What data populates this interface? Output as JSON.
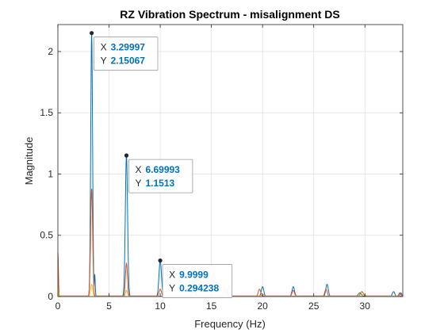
{
  "chart_data": {
    "type": "line",
    "title": "RZ Vibration Spectrum - misalignment DS",
    "xlabel": "Frequency (Hz)",
    "ylabel": "Magnitude",
    "xlim": [
      0,
      33.7
    ],
    "ylim": [
      0,
      2.22
    ],
    "xticks": [
      0,
      5,
      10,
      15,
      20,
      25,
      30
    ],
    "yticks": [
      0,
      0.5,
      1,
      1.5,
      2
    ],
    "xtick_labels": [
      "0",
      "5",
      "10",
      "15",
      "20",
      "25",
      "30"
    ],
    "ytick_labels": [
      "0",
      "0.5",
      "1",
      "1.5",
      "2"
    ],
    "grid": true,
    "series": [
      {
        "color": "#0072BD",
        "peaks": [
          {
            "x": 0.0,
            "y": 0.3,
            "w": 0.05
          },
          {
            "x": 3.29997,
            "y": 2.15067,
            "w": 0.09
          },
          {
            "x": 3.6,
            "y": 0.18,
            "w": 0.05
          },
          {
            "x": 6.69993,
            "y": 1.1513,
            "w": 0.11
          },
          {
            "x": 9.9999,
            "y": 0.294238,
            "w": 0.12
          },
          {
            "x": 13.3,
            "y": 0.14,
            "w": 0.12
          },
          {
            "x": 16.3,
            "y": 0.07,
            "w": 0.12
          },
          {
            "x": 16.75,
            "y": 0.09,
            "w": 0.1
          },
          {
            "x": 20.0,
            "y": 0.08,
            "w": 0.12
          },
          {
            "x": 23.0,
            "y": 0.08,
            "w": 0.12
          },
          {
            "x": 26.3,
            "y": 0.1,
            "w": 0.12
          },
          {
            "x": 29.5,
            "y": 0.03,
            "w": 0.15
          },
          {
            "x": 32.8,
            "y": 0.04,
            "w": 0.12
          },
          {
            "x": 33.5,
            "y": 0.03,
            "w": 0.1
          }
        ]
      },
      {
        "color": "#D95319",
        "peaks": [
          {
            "x": 0.0,
            "y": 0.36,
            "w": 0.05
          },
          {
            "x": 3.3,
            "y": 0.88,
            "w": 0.1
          },
          {
            "x": 6.7,
            "y": 0.27,
            "w": 0.1
          },
          {
            "x": 10.0,
            "y": 0.06,
            "w": 0.12
          },
          {
            "x": 13.3,
            "y": 0.04,
            "w": 0.12
          },
          {
            "x": 16.5,
            "y": 0.05,
            "w": 0.15
          },
          {
            "x": 19.7,
            "y": 0.06,
            "w": 0.12
          },
          {
            "x": 23.0,
            "y": 0.05,
            "w": 0.12
          },
          {
            "x": 26.2,
            "y": 0.06,
            "w": 0.12
          },
          {
            "x": 29.7,
            "y": 0.04,
            "w": 0.15
          },
          {
            "x": 33.4,
            "y": 0.03,
            "w": 0.1
          }
        ]
      },
      {
        "color": "#EDB120",
        "peaks": [
          {
            "x": 0.0,
            "y": 0.08,
            "w": 0.05
          },
          {
            "x": 3.3,
            "y": 0.1,
            "w": 0.1
          },
          {
            "x": 6.7,
            "y": 0.05,
            "w": 0.1
          },
          {
            "x": 20.0,
            "y": 0.02,
            "w": 0.15
          },
          {
            "x": 29.9,
            "y": 0.02,
            "w": 0.15
          }
        ]
      }
    ],
    "datatips": [
      {
        "x": 3.29997,
        "y": 2.15067,
        "x_text": "3.29997",
        "y_text": "2.15067"
      },
      {
        "x": 6.69993,
        "y": 1.1513,
        "x_text": "6.69993",
        "y_text": "1.1513"
      },
      {
        "x": 9.9999,
        "y": 0.294238,
        "x_text": "9.9999",
        "y_text": "0.294238"
      }
    ],
    "datatip_labels": {
      "x": "X",
      "y": "Y"
    },
    "datatip_value_color": "#0072BD"
  }
}
